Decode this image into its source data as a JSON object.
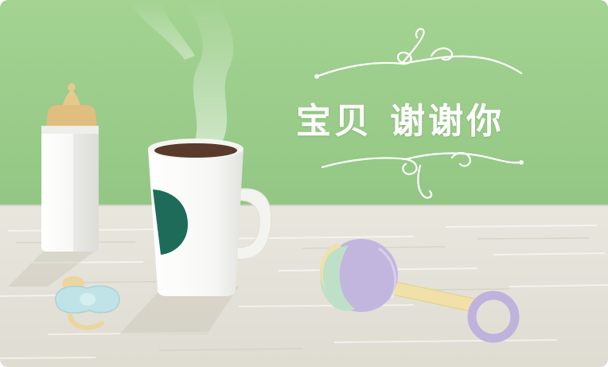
{
  "card": {
    "greeting_part1": "宝贝",
    "greeting_part2": "谢谢你"
  },
  "colors": {
    "wall": "#9fce8f",
    "table": "#e6e3da",
    "cup_logo": "#1f6b5a",
    "coffee": "#5a3a2a",
    "bottle_nipple": "#e7c98e",
    "rattle_lilac": "#bfb2dc",
    "rattle_mint": "#bfe0c8",
    "rattle_cream": "#f1e1a8",
    "pacifier_blue": "#bfe3e6"
  },
  "icons": [
    "swirl-ornament-icon",
    "baby-bottle",
    "coffee-cup",
    "pacifier",
    "rattle"
  ]
}
